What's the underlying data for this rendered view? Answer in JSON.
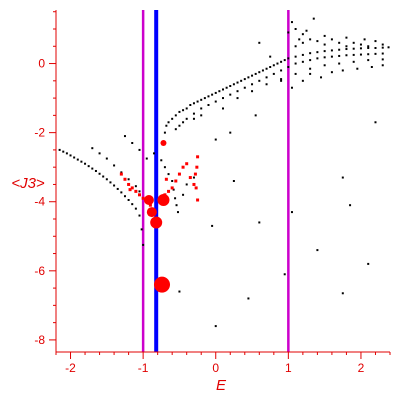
{
  "chart_data": {
    "type": "scatter",
    "title": "",
    "xlabel": "E",
    "ylabel": "<J3>",
    "xlim": [
      -2.2,
      2.4
    ],
    "ylim": [
      -8.35,
      1.55
    ],
    "grid": false,
    "legend": "none",
    "x_ticks": [
      -2,
      -1,
      0,
      1,
      2
    ],
    "y_ticks": [
      -8,
      -6,
      -4,
      -2,
      0
    ],
    "axis_color": "#e00000",
    "vertical_lines": [
      {
        "x": -1.0,
        "color": "#cc00cc"
      },
      {
        "x": -0.82,
        "color": "#0000ff"
      },
      {
        "x": 1.0,
        "color": "#cc00cc"
      }
    ],
    "series": [
      {
        "color": "#000000",
        "marker": "small-dot",
        "points": [
          [
            -2.15,
            -2.5
          ],
          [
            -2.1,
            -2.55
          ],
          [
            -2.05,
            -2.6
          ],
          [
            -2.0,
            -2.66
          ],
          [
            -1.95,
            -2.72
          ],
          [
            -1.9,
            -2.78
          ],
          [
            -1.85,
            -2.84
          ],
          [
            -1.8,
            -2.9
          ],
          [
            -1.75,
            -2.97
          ],
          [
            -1.7,
            -3.04
          ],
          [
            -1.65,
            -3.11
          ],
          [
            -1.6,
            -3.19
          ],
          [
            -1.55,
            -3.27
          ],
          [
            -1.5,
            -3.35
          ],
          [
            -1.45,
            -3.44
          ],
          [
            -1.4,
            -3.53
          ],
          [
            -1.35,
            -3.63
          ],
          [
            -1.3,
            -3.73
          ],
          [
            -1.25,
            -3.84
          ],
          [
            -1.2,
            -3.95
          ],
          [
            -1.15,
            -4.07
          ],
          [
            -1.1,
            -4.2
          ],
          [
            -1.05,
            -4.4
          ],
          [
            -1.02,
            -4.8
          ],
          [
            -1.0,
            -5.25
          ],
          [
            -1.7,
            -2.45
          ],
          [
            -1.6,
            -2.6
          ],
          [
            -1.5,
            -2.75
          ],
          [
            -1.4,
            -2.95
          ],
          [
            -1.3,
            -3.15
          ],
          [
            -1.2,
            -3.35
          ],
          [
            -1.1,
            -3.55
          ],
          [
            -1.05,
            -3.7
          ],
          [
            -1.25,
            -2.1
          ],
          [
            -1.15,
            -2.3
          ],
          [
            -1.05,
            -2.5
          ],
          [
            -0.95,
            -2.75
          ],
          [
            -0.85,
            -2.6
          ],
          [
            -0.75,
            -2.8
          ],
          [
            -0.7,
            -3.0
          ],
          [
            -0.65,
            -3.2
          ],
          [
            -0.6,
            -3.4
          ],
          [
            -0.58,
            -3.65
          ],
          [
            -0.56,
            -3.9
          ],
          [
            -0.54,
            -4.1
          ],
          [
            -0.52,
            -4.3
          ],
          [
            -0.45,
            -3.8
          ],
          [
            -0.4,
            -3.5
          ],
          [
            -0.35,
            -3.3
          ],
          [
            -0.7,
            -2.0
          ],
          [
            -0.68,
            -1.8
          ],
          [
            -0.65,
            -1.7
          ],
          [
            -0.6,
            -1.6
          ],
          [
            -0.55,
            -1.5
          ],
          [
            -0.5,
            -1.4
          ],
          [
            -0.45,
            -1.35
          ],
          [
            -0.4,
            -1.3
          ],
          [
            -0.35,
            -1.2
          ],
          [
            -0.3,
            -1.15
          ],
          [
            -0.25,
            -1.1
          ],
          [
            -0.2,
            -1.05
          ],
          [
            -0.15,
            -1.0
          ],
          [
            -0.1,
            -0.95
          ],
          [
            -0.05,
            -0.9
          ],
          [
            0.0,
            -0.85
          ],
          [
            0.05,
            -0.8
          ],
          [
            0.1,
            -0.75
          ],
          [
            0.15,
            -0.7
          ],
          [
            0.2,
            -0.65
          ],
          [
            0.25,
            -0.6
          ],
          [
            0.3,
            -0.55
          ],
          [
            0.35,
            -0.5
          ],
          [
            0.4,
            -0.45
          ],
          [
            0.45,
            -0.4
          ],
          [
            0.5,
            -0.35
          ],
          [
            0.55,
            -0.3
          ],
          [
            0.6,
            -0.25
          ],
          [
            0.65,
            -0.2
          ],
          [
            0.7,
            -0.15
          ],
          [
            0.75,
            -0.1
          ],
          [
            0.8,
            -0.05
          ],
          [
            0.85,
            0.0
          ],
          [
            0.9,
            0.05
          ],
          [
            0.95,
            0.1
          ],
          [
            1.0,
            0.15
          ],
          [
            1.1,
            0.2
          ],
          [
            1.2,
            0.25
          ],
          [
            1.3,
            0.3
          ],
          [
            1.4,
            0.33
          ],
          [
            1.5,
            0.36
          ],
          [
            1.6,
            0.38
          ],
          [
            1.7,
            0.4
          ],
          [
            1.8,
            0.42
          ],
          [
            1.9,
            0.43
          ],
          [
            2.0,
            0.44
          ],
          [
            2.1,
            0.45
          ],
          [
            2.2,
            0.45
          ],
          [
            2.3,
            0.46
          ],
          [
            2.38,
            0.47
          ],
          [
            -0.55,
            -1.9
          ],
          [
            -0.5,
            -1.8
          ],
          [
            -0.45,
            -1.7
          ],
          [
            -0.4,
            -1.6
          ],
          [
            -0.3,
            -1.45
          ],
          [
            -0.2,
            -1.3
          ],
          [
            -0.1,
            -1.2
          ],
          [
            0.0,
            -1.1
          ],
          [
            0.1,
            -1.0
          ],
          [
            0.2,
            -0.9
          ],
          [
            0.3,
            -0.8
          ],
          [
            0.4,
            -0.7
          ],
          [
            0.5,
            -0.6
          ],
          [
            0.6,
            -0.5
          ],
          [
            0.7,
            -0.4
          ],
          [
            0.8,
            -0.3
          ],
          [
            0.9,
            -0.2
          ],
          [
            1.0,
            -0.1
          ],
          [
            1.1,
            0.0
          ],
          [
            1.2,
            0.05
          ],
          [
            1.3,
            0.1
          ],
          [
            1.4,
            0.15
          ],
          [
            1.5,
            0.18
          ],
          [
            1.6,
            0.2
          ],
          [
            1.7,
            0.22
          ],
          [
            1.8,
            0.24
          ],
          [
            1.9,
            0.25
          ],
          [
            2.0,
            0.26
          ],
          [
            2.1,
            0.27
          ],
          [
            2.2,
            0.28
          ],
          [
            2.3,
            0.29
          ],
          [
            -0.3,
            -1.6
          ],
          [
            -0.2,
            -1.5
          ],
          [
            0.1,
            -1.3
          ],
          [
            0.3,
            -1.0
          ],
          [
            0.5,
            -0.8
          ],
          [
            0.7,
            -0.6
          ],
          [
            0.9,
            -0.45
          ],
          [
            1.1,
            -0.3
          ],
          [
            1.3,
            -0.15
          ],
          [
            1.5,
            -0.05
          ],
          [
            1.7,
            0.0
          ],
          [
            1.9,
            0.05
          ],
          [
            2.1,
            0.1
          ],
          [
            2.3,
            0.12
          ],
          [
            1.1,
            0.5
          ],
          [
            1.2,
            0.6
          ],
          [
            1.3,
            0.7
          ],
          [
            1.4,
            0.65
          ],
          [
            1.5,
            0.55
          ],
          [
            1.6,
            0.7
          ],
          [
            1.7,
            0.6
          ],
          [
            1.8,
            0.5
          ],
          [
            1.9,
            0.6
          ],
          [
            2.0,
            0.55
          ],
          [
            2.1,
            0.5
          ],
          [
            2.2,
            0.65
          ],
          [
            2.3,
            0.55
          ],
          [
            1.2,
            0.85
          ],
          [
            1.5,
            0.8
          ],
          [
            1.8,
            0.75
          ],
          [
            2.05,
            0.7
          ],
          [
            1.3,
            -0.3
          ],
          [
            1.45,
            -0.4
          ],
          [
            1.6,
            -0.25
          ],
          [
            1.75,
            -0.2
          ],
          [
            1.95,
            -0.15
          ],
          [
            2.15,
            -0.1
          ],
          [
            2.3,
            -0.05
          ],
          [
            1.0,
            0.9
          ],
          [
            1.05,
            1.2
          ],
          [
            1.1,
            1.0
          ],
          [
            1.15,
            0.7
          ],
          [
            1.25,
            0.95
          ],
          [
            0.6,
            0.6
          ],
          [
            0.75,
            0.2
          ],
          [
            0.9,
            -0.5
          ],
          [
            1.05,
            -0.7
          ],
          [
            1.2,
            -0.5
          ],
          [
            1.35,
            1.3
          ],
          [
            0.2,
            -2.0
          ],
          [
            0.55,
            -1.5
          ],
          [
            0.0,
            -2.2
          ],
          [
            2.2,
            -1.7
          ],
          [
            1.75,
            -3.3
          ],
          [
            -0.3,
            -3.3
          ],
          [
            0.25,
            -3.4
          ],
          [
            -0.05,
            -4.7
          ],
          [
            0.6,
            -4.6
          ],
          [
            1.05,
            -4.3
          ],
          [
            1.85,
            -4.1
          ],
          [
            1.4,
            -5.4
          ],
          [
            2.1,
            -5.8
          ],
          [
            0.95,
            -6.1
          ],
          [
            0.45,
            -6.8
          ],
          [
            -0.5,
            -6.6
          ],
          [
            1.75,
            -6.65
          ],
          [
            0.0,
            -7.6
          ]
        ]
      },
      {
        "color": "#ff0000",
        "marker": "small-square",
        "points": [
          [
            -1.3,
            -3.2
          ],
          [
            -1.25,
            -3.35
          ],
          [
            -1.2,
            -3.5
          ],
          [
            -1.15,
            -3.6
          ],
          [
            -1.1,
            -3.7
          ],
          [
            -1.05,
            -3.8
          ],
          [
            -1.0,
            -3.9
          ],
          [
            -0.95,
            -4.0
          ],
          [
            -0.9,
            -4.1
          ],
          [
            -0.7,
            -3.8
          ],
          [
            -0.65,
            -3.7
          ],
          [
            -0.6,
            -3.6
          ],
          [
            -0.55,
            -3.4
          ],
          [
            -0.5,
            -3.2
          ],
          [
            -0.45,
            -3.0
          ],
          [
            -0.4,
            -2.9
          ],
          [
            -0.35,
            -3.3
          ],
          [
            -0.3,
            -3.5
          ],
          [
            -0.28,
            -3.2
          ],
          [
            -0.26,
            -3.0
          ],
          [
            -0.25,
            -2.7
          ],
          [
            -0.27,
            -3.6
          ],
          [
            -0.25,
            -3.95
          ],
          [
            -0.68,
            -3.35
          ],
          [
            -1.18,
            -3.65
          ]
        ]
      },
      {
        "color": "#ff0000",
        "marker": "large-dot",
        "points": [
          {
            "x": -0.92,
            "y": -3.95,
            "r": 5
          },
          {
            "x": -0.72,
            "y": -3.95,
            "r": 6
          },
          {
            "x": -0.88,
            "y": -4.3,
            "r": 5
          },
          {
            "x": -0.82,
            "y": -4.6,
            "r": 6
          },
          {
            "x": -0.74,
            "y": -6.4,
            "r": 8
          },
          {
            "x": -0.72,
            "y": -2.3,
            "r": 3
          }
        ]
      }
    ]
  }
}
